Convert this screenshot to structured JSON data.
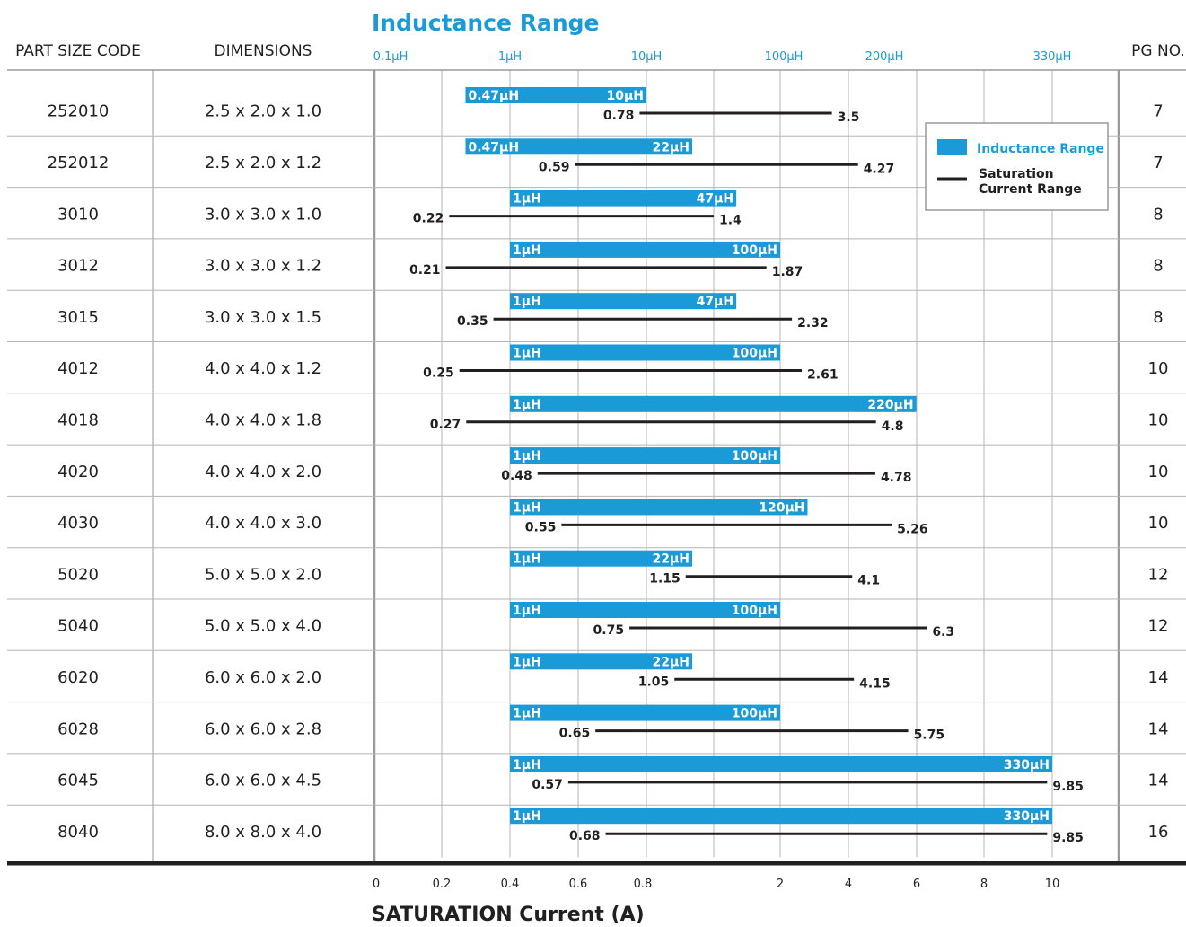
{
  "chart_data": {
    "type": "table",
    "title": "Inductance Range",
    "xlabel": "SATURATION Current (A)",
    "columns": {
      "part": "PART SIZE CODE",
      "dims": "DIMENSIONS",
      "page": "PG NO."
    },
    "inductance_axis_ticks": [
      "0.1µH",
      "1µH",
      "10µH",
      "100µH",
      "200µH",
      "330µH"
    ],
    "current_axis_ticks": [
      "0",
      "0.2",
      "0.4",
      "0.6",
      "0.8",
      "2",
      "4",
      "6",
      "8",
      "10"
    ],
    "legend": {
      "inductance": "Inductance Range",
      "saturation_line1": "Saturation",
      "saturation_line2": "Current Range"
    },
    "colors": {
      "inductance": "#1a9ad6",
      "saturation": "#231f20",
      "grid": "#9a9a9a"
    },
    "rows": [
      {
        "part": "252010",
        "dims": "2.5 x 2.0 x 1.0",
        "page": "7",
        "ind_min": "0.47µH",
        "ind_max": "10µH",
        "ind_min_uh": 0.47,
        "ind_max_uh": 10,
        "sat_min": 0.78,
        "sat_max": 3.5
      },
      {
        "part": "252012",
        "dims": "2.5 x 2.0 x 1.2",
        "page": "7",
        "ind_min": "0.47µH",
        "ind_max": "22µH",
        "ind_min_uh": 0.47,
        "ind_max_uh": 22,
        "sat_min": 0.59,
        "sat_max": 4.27
      },
      {
        "part": "3010",
        "dims": "3.0 x 3.0 x 1.0",
        "page": "8",
        "ind_min": "1µH",
        "ind_max": "47µH",
        "ind_min_uh": 1,
        "ind_max_uh": 47,
        "sat_min": 0.22,
        "sat_max": 1.4
      },
      {
        "part": "3012",
        "dims": "3.0 x 3.0 x 1.2",
        "page": "8",
        "ind_min": "1µH",
        "ind_max": "100µH",
        "ind_min_uh": 1,
        "ind_max_uh": 100,
        "sat_min": 0.21,
        "sat_max": 1.87
      },
      {
        "part": "3015",
        "dims": "3.0 x 3.0 x 1.5",
        "page": "8",
        "ind_min": "1µH",
        "ind_max": "47µH",
        "ind_min_uh": 1,
        "ind_max_uh": 47,
        "sat_min": 0.35,
        "sat_max": 2.32
      },
      {
        "part": "4012",
        "dims": "4.0 x 4.0 x 1.2",
        "page": "10",
        "ind_min": "1µH",
        "ind_max": "100µH",
        "ind_min_uh": 1,
        "ind_max_uh": 100,
        "sat_min": 0.25,
        "sat_max": 2.61
      },
      {
        "part": "4018",
        "dims": "4.0 x 4.0 x 1.8",
        "page": "10",
        "ind_min": "1µH",
        "ind_max": "220µH",
        "ind_min_uh": 1,
        "ind_max_uh": 220,
        "sat_min": 0.27,
        "sat_max": 4.8
      },
      {
        "part": "4020",
        "dims": "4.0 x 4.0 x 2.0",
        "page": "10",
        "ind_min": "1µH",
        "ind_max": "100µH",
        "ind_min_uh": 1,
        "ind_max_uh": 100,
        "sat_min": 0.48,
        "sat_max": 4.78
      },
      {
        "part": "4030",
        "dims": "4.0 x 4.0 x 3.0",
        "page": "10",
        "ind_min": "1µH",
        "ind_max": "120µH",
        "ind_min_uh": 1,
        "ind_max_uh": 120,
        "sat_min": 0.55,
        "sat_max": 5.26
      },
      {
        "part": "5020",
        "dims": "5.0 x 5.0 x 2.0",
        "page": "12",
        "ind_min": "1µH",
        "ind_max": "22µH",
        "ind_min_uh": 1,
        "ind_max_uh": 22,
        "sat_min": 1.15,
        "sat_max": 4.1
      },
      {
        "part": "5040",
        "dims": "5.0 x 5.0 x 4.0",
        "page": "12",
        "ind_min": "1µH",
        "ind_max": "100µH",
        "ind_min_uh": 1,
        "ind_max_uh": 100,
        "sat_min": 0.75,
        "sat_max": 6.3
      },
      {
        "part": "6020",
        "dims": "6.0 x 6.0 x 2.0",
        "page": "14",
        "ind_min": "1µH",
        "ind_max": "22µH",
        "ind_min_uh": 1,
        "ind_max_uh": 22,
        "sat_min": 1.05,
        "sat_max": 4.15
      },
      {
        "part": "6028",
        "dims": "6.0 x 6.0 x 2.8",
        "page": "14",
        "ind_min": "1µH",
        "ind_max": "100µH",
        "ind_min_uh": 1,
        "ind_max_uh": 100,
        "sat_min": 0.65,
        "sat_max": 5.75
      },
      {
        "part": "6045",
        "dims": "6.0 x 6.0 x 4.5",
        "page": "14",
        "ind_min": "1µH",
        "ind_max": "330µH",
        "ind_min_uh": 1,
        "ind_max_uh": 330,
        "sat_min": 0.57,
        "sat_max": 9.85
      },
      {
        "part": "8040",
        "dims": "8.0 x 8.0 x 4.0",
        "page": "16",
        "ind_min": "1µH",
        "ind_max": "330µH",
        "ind_min_uh": 1,
        "ind_max_uh": 330,
        "sat_min": 0.68,
        "sat_max": 9.85
      }
    ]
  }
}
